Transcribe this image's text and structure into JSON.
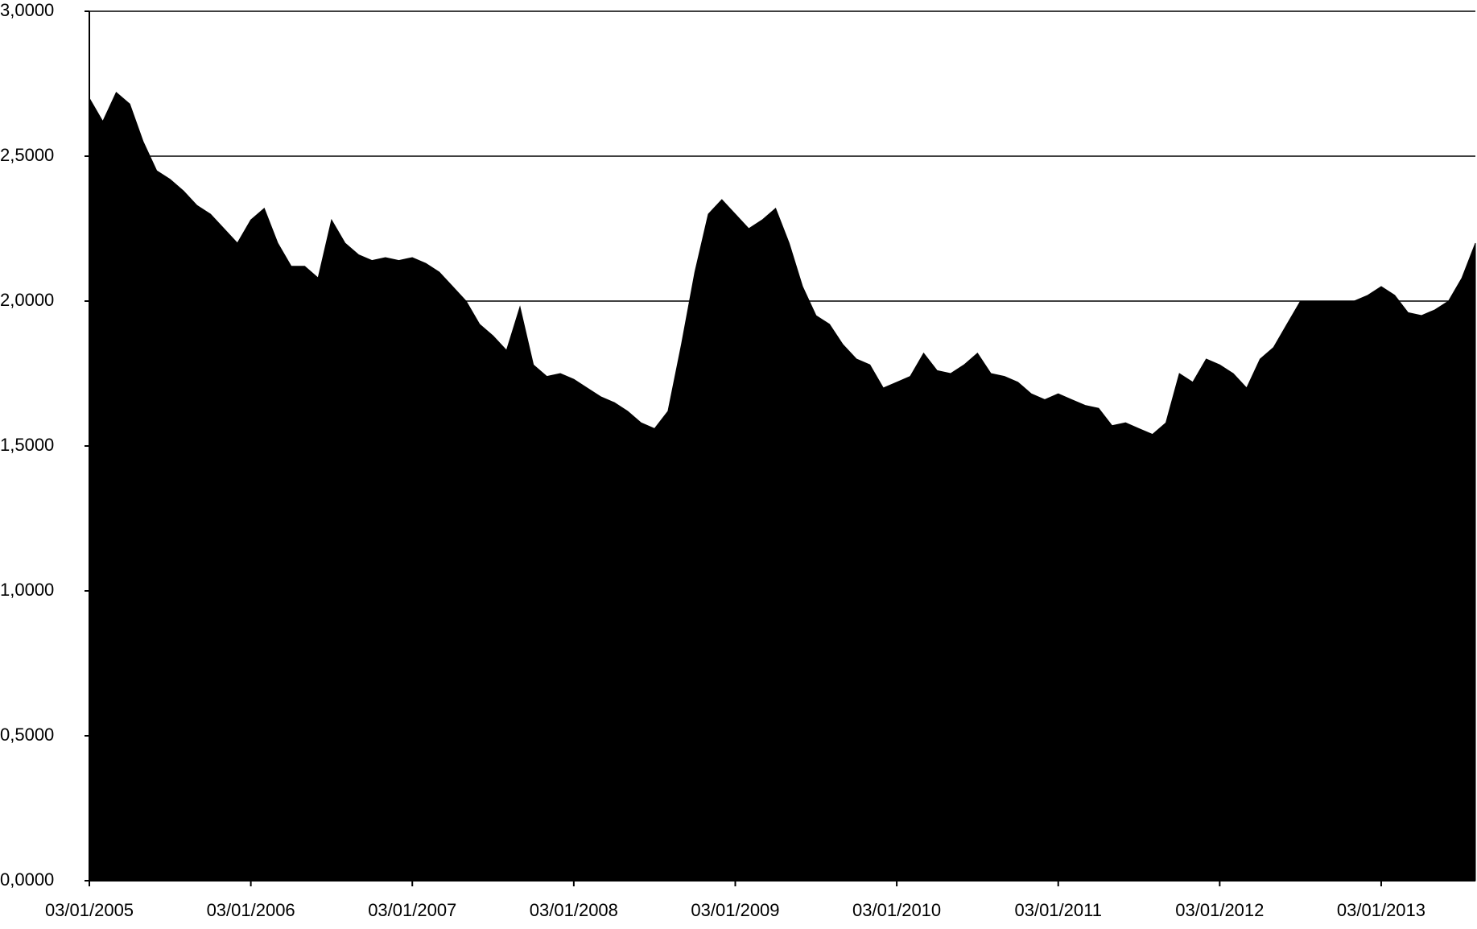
{
  "chart_data": {
    "type": "area",
    "color": "#000000",
    "grid": true,
    "x": [
      "03/01/2005",
      "03/02/2005",
      "03/03/2005",
      "03/04/2005",
      "03/05/2005",
      "03/06/2005",
      "03/07/2005",
      "03/08/2005",
      "03/09/2005",
      "03/10/2005",
      "03/11/2005",
      "03/12/2005",
      "03/01/2006",
      "03/02/2006",
      "03/03/2006",
      "03/04/2006",
      "03/05/2006",
      "03/06/2006",
      "03/07/2006",
      "03/08/2006",
      "03/09/2006",
      "03/10/2006",
      "03/11/2006",
      "03/12/2006",
      "03/01/2007",
      "03/02/2007",
      "03/03/2007",
      "03/04/2007",
      "03/05/2007",
      "03/06/2007",
      "03/07/2007",
      "03/08/2007",
      "03/09/2007",
      "03/10/2007",
      "03/11/2007",
      "03/12/2007",
      "03/01/2008",
      "03/02/2008",
      "03/03/2008",
      "03/04/2008",
      "03/05/2008",
      "03/06/2008",
      "03/07/2008",
      "03/08/2008",
      "03/09/2008",
      "03/10/2008",
      "03/11/2008",
      "03/12/2008",
      "03/01/2009",
      "03/02/2009",
      "03/03/2009",
      "03/04/2009",
      "03/05/2009",
      "03/06/2009",
      "03/07/2009",
      "03/08/2009",
      "03/09/2009",
      "03/10/2009",
      "03/11/2009",
      "03/12/2009",
      "03/01/2010",
      "03/02/2010",
      "03/03/2010",
      "03/04/2010",
      "03/05/2010",
      "03/06/2010",
      "03/07/2010",
      "03/08/2010",
      "03/09/2010",
      "03/10/2010",
      "03/11/2010",
      "03/12/2010",
      "03/01/2011",
      "03/02/2011",
      "03/03/2011",
      "03/04/2011",
      "03/05/2011",
      "03/06/2011",
      "03/07/2011",
      "03/08/2011",
      "03/09/2011",
      "03/10/2011",
      "03/11/2011",
      "03/12/2011",
      "03/01/2012",
      "03/02/2012",
      "03/03/2012",
      "03/04/2012",
      "03/05/2012",
      "03/06/2012",
      "03/07/2012",
      "03/08/2012",
      "03/09/2012",
      "03/10/2012",
      "03/11/2012",
      "03/12/2012",
      "03/01/2013",
      "03/02/2013",
      "03/03/2013",
      "03/04/2013",
      "03/05/2013",
      "03/06/2013",
      "03/07/2013",
      "03/08/2013"
    ],
    "values": [
      2.7,
      2.62,
      2.72,
      2.68,
      2.55,
      2.45,
      2.42,
      2.38,
      2.33,
      2.3,
      2.25,
      2.2,
      2.28,
      2.32,
      2.2,
      2.12,
      2.12,
      2.08,
      2.28,
      2.2,
      2.16,
      2.14,
      2.15,
      2.14,
      2.15,
      2.13,
      2.1,
      2.05,
      2.0,
      1.92,
      1.88,
      1.83,
      1.98,
      1.78,
      1.74,
      1.75,
      1.73,
      1.7,
      1.67,
      1.65,
      1.62,
      1.58,
      1.56,
      1.62,
      1.85,
      2.1,
      2.3,
      2.35,
      2.3,
      2.25,
      2.28,
      2.32,
      2.2,
      2.05,
      1.95,
      1.92,
      1.85,
      1.8,
      1.78,
      1.7,
      1.72,
      1.74,
      1.82,
      1.76,
      1.75,
      1.78,
      1.82,
      1.75,
      1.74,
      1.72,
      1.68,
      1.66,
      1.68,
      1.66,
      1.64,
      1.63,
      1.57,
      1.58,
      1.56,
      1.54,
      1.58,
      1.75,
      1.72,
      1.8,
      1.78,
      1.75,
      1.7,
      1.8,
      1.84,
      1.92,
      2.0,
      2.0,
      2.0,
      2.0,
      2.0,
      2.02,
      2.05,
      2.02,
      1.96,
      1.95,
      1.97,
      2.0,
      2.08,
      2.2
    ],
    "ylim": [
      0,
      3
    ],
    "yticks": [
      {
        "value": 0,
        "label": "0,0000"
      },
      {
        "value": 0.5,
        "label": "0,5000"
      },
      {
        "value": 1,
        "label": "1,0000"
      },
      {
        "value": 1.5,
        "label": "1,5000"
      },
      {
        "value": 2,
        "label": "2,0000"
      },
      {
        "value": 2.5,
        "label": "2,5000"
      },
      {
        "value": 3,
        "label": "3,0000"
      }
    ]
  }
}
